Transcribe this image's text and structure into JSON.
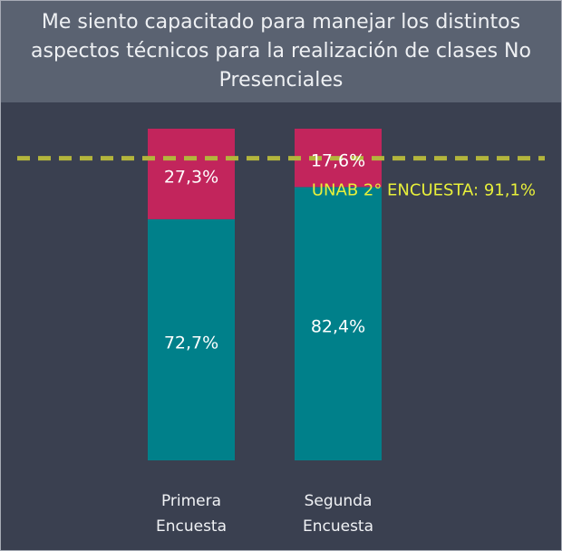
{
  "chart_data": {
    "type": "stacked_bar",
    "title": "Me siento capacitado para manejar los distintos aspectos técnicos para la realización de clases No Presenciales",
    "categories": [
      "Primera Encuesta",
      "Segunda Encuesta"
    ],
    "series": [
      {
        "color": "#00808a",
        "values": [
          72.7,
          82.4
        ],
        "value_labels": [
          "72,7%",
          "82,4%"
        ]
      },
      {
        "color": "#c2255c",
        "values": [
          27.3,
          17.6
        ],
        "value_labels": [
          "27,3%",
          "17,6%"
        ]
      }
    ],
    "ylim": [
      0,
      100
    ],
    "reference_line": {
      "value": 91.1,
      "label": "UNAB 2° ENCUESTA: 91,1%",
      "color": "#b3b53c",
      "label_color": "#e8f03a"
    }
  }
}
